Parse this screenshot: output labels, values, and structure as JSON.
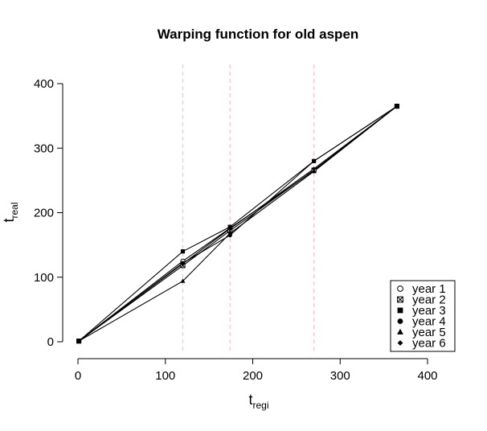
{
  "chart_data": {
    "type": "line",
    "title": "Warping function for old aspen",
    "xlabel_main": "t",
    "xlabel_sub": "regi",
    "ylabel_main": "t",
    "ylabel_sub": "real",
    "xlim": [
      0,
      400
    ],
    "ylim": [
      0,
      400
    ],
    "xticks": [
      0,
      100,
      200,
      300,
      400
    ],
    "yticks": [
      0,
      100,
      200,
      300,
      400
    ],
    "vlines": [
      120,
      174,
      270
    ],
    "vline_color": "#ffc0cb",
    "grid": false,
    "legend_position": "bottom-right",
    "series": [
      {
        "name": "year 1",
        "marker": "circle-open",
        "x": [
          1,
          120,
          174,
          270,
          365
        ],
        "y": [
          1,
          125,
          176,
          265,
          365
        ]
      },
      {
        "name": "year 2",
        "marker": "square-x",
        "x": [
          1,
          120,
          174,
          270,
          365
        ],
        "y": [
          1,
          118,
          172,
          266,
          365
        ]
      },
      {
        "name": "year 3",
        "marker": "square",
        "x": [
          1,
          120,
          174,
          270,
          365
        ],
        "y": [
          1,
          140,
          178,
          280,
          365
        ]
      },
      {
        "name": "year 4",
        "marker": "circle",
        "x": [
          1,
          120,
          174,
          270,
          365
        ],
        "y": [
          1,
          122,
          165,
          280,
          365
        ]
      },
      {
        "name": "year 5",
        "marker": "triangle",
        "x": [
          1,
          120,
          174,
          270,
          365
        ],
        "y": [
          1,
          94,
          168,
          264,
          365
        ]
      },
      {
        "name": "year 6",
        "marker": "diamond",
        "x": [
          1,
          120,
          174,
          270,
          365
        ],
        "y": [
          1,
          121,
          175,
          268,
          365
        ]
      }
    ]
  }
}
